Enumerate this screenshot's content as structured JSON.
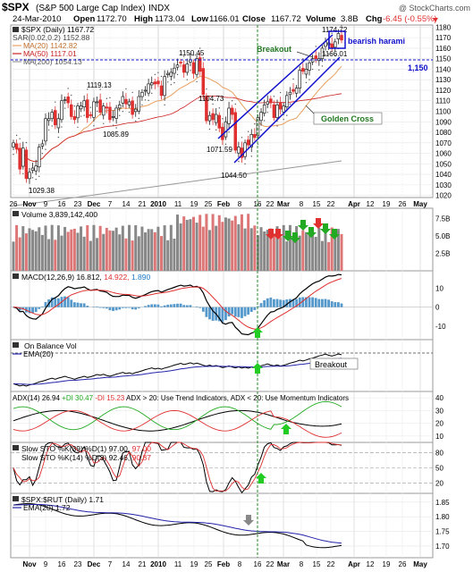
{
  "header": {
    "symbol": "$SPX",
    "name": "(S&P 500 Large Cap Index)",
    "exchange": "INDX",
    "credit": "@ StockCharts.com",
    "date": "24-Mar-2010",
    "open_label": "Open",
    "open": "1172.70",
    "high_label": "High",
    "high": "1173.04",
    "low_label": "Low",
    "low": "1166.01",
    "close_label": "Close",
    "close": "1167.72",
    "volume_label": "Volume",
    "volume": "3.8B",
    "chg_label": "Chg",
    "chg": "-6.45 (-0.55%)"
  },
  "colors": {
    "up": "#222222",
    "down": "#e03030",
    "ma20": "#e8a060",
    "ma50": "#cc2020",
    "ma200": "#999999",
    "annot": "#1010cc",
    "green": "#22aa22",
    "pane_border": "#999999"
  },
  "price_panel": {
    "legend": [
      "$SPX (Daily) 1167.72",
      "SAR(0.02,0.2) 1152.88",
      "MA(20) 1142.82",
      "MA(50) 1117.01",
      "MA(200) 1054.13"
    ],
    "y_ticks": [
      "1020",
      "1030",
      "1040",
      "1050",
      "1060",
      "1070",
      "1080",
      "1090",
      "1100",
      "1110",
      "1120",
      "1130",
      "1140",
      "1150",
      "1160",
      "1170",
      "1180"
    ],
    "ylim": [
      1018,
      1182
    ],
    "extrema_labels": [
      "1029.38",
      "1119.13",
      "1085.89",
      "1150.45",
      "1104.73",
      "1071.59",
      "1044.50",
      "1174.72",
      "1166.01"
    ],
    "annotations": {
      "breakout": "Breakout",
      "bearish": "bearish harami",
      "level": "1,150",
      "golden": "Golden Cross"
    }
  },
  "volume_panel": {
    "legend": "Volume 3,839,142,400",
    "y_ticks": [
      "2.5B",
      "5.0B",
      "7.5B"
    ]
  },
  "macd_panel": {
    "legend_name": "MACD(12,26,9)",
    "legend_macd": "16.812,",
    "legend_signal": "14.922,",
    "legend_hist": "1.890",
    "y_ticks": [
      "10",
      "0",
      "-10"
    ]
  },
  "obv_panel": {
    "legend": "On Balance Vol",
    "legend2": "EMA(20)",
    "breakout": "Breakout"
  },
  "adx_panel": {
    "legend_adx": "ADX(14) 26.94",
    "legend_pdi": "+DI 30.47",
    "legend_mdi": "-DI 15.23",
    "legend_note": "ADX > 20: Use Trend Indicators, ADX < 20: Use Momentum Indicators",
    "y_ticks": [
      "10",
      "20",
      "30",
      "40"
    ]
  },
  "sto_panel": {
    "legend1_name": "Slow STO %K(39) %D(1)",
    "legend1_k": "97.00,",
    "legend1_d": "97.00",
    "legend2_name": "Slow STO %K(14) %D(3)",
    "legend2_k": "92.46,",
    "legend2_d": "90.87",
    "y_ticks": [
      "20",
      "50",
      "80"
    ]
  },
  "ratio_panel": {
    "legend": "$SPX:$RUT (Daily) 1.71",
    "legend2": "EMA(20) 1.72",
    "y_ticks": [
      "1.70",
      "1.75",
      "1.80",
      "1.85"
    ]
  },
  "x_axis": {
    "top_labels": [
      "26",
      "Nov",
      "9",
      "16",
      "23",
      "Dec",
      "7",
      "14",
      "21",
      "2010",
      "11",
      "19",
      "25",
      "Feb",
      "8",
      "16",
      "22",
      "Mar",
      "8",
      "15",
      "22",
      "Apr",
      "12",
      "19",
      "26",
      "May"
    ],
    "bottom_labels": [
      "Nov",
      "9",
      "16",
      "23",
      "Dec",
      "7",
      "14",
      "21",
      "2010",
      "11",
      "19",
      "25",
      "Feb",
      "8",
      "16",
      "22",
      "Mar",
      "8",
      "15",
      "22",
      "Apr",
      "12",
      "19",
      "26",
      "May"
    ]
  },
  "chart_data": {
    "type": "candlestick",
    "title": "$SPX (S&P 500 Large Cap Index) INDX",
    "dates": [
      "Oct 26",
      "Oct 27",
      "Oct 28",
      "Oct 29",
      "Oct 30",
      "Nov 2",
      "Nov 3",
      "Nov 4",
      "Nov 5",
      "Nov 6",
      "Nov 9",
      "Nov 10",
      "Nov 11",
      "Nov 12",
      "Nov 13",
      "Nov 16",
      "Nov 17",
      "Nov 18",
      "Nov 19",
      "Nov 20",
      "Nov 23",
      "Nov 24",
      "Nov 25",
      "Nov 27",
      "Nov 30",
      "Dec 1",
      "Dec 2",
      "Dec 3",
      "Dec 4",
      "Dec 7",
      "Dec 8",
      "Dec 9",
      "Dec 10",
      "Dec 11",
      "Dec 14",
      "Dec 15",
      "Dec 16",
      "Dec 17",
      "Dec 18",
      "Dec 21",
      "Dec 22",
      "Dec 23",
      "Dec 24",
      "Dec 28",
      "Dec 29",
      "Dec 30",
      "Dec 31",
      "Jan 4",
      "Jan 5",
      "Jan 6",
      "Jan 7",
      "Jan 8",
      "Jan 11",
      "Jan 12",
      "Jan 13",
      "Jan 14",
      "Jan 15",
      "Jan 19",
      "Jan 20",
      "Jan 21",
      "Jan 22",
      "Jan 25",
      "Jan 26",
      "Jan 27",
      "Jan 28",
      "Jan 29",
      "Feb 1",
      "Feb 2",
      "Feb 3",
      "Feb 4",
      "Feb 5",
      "Feb 8",
      "Feb 9",
      "Feb 10",
      "Feb 11",
      "Feb 12",
      "Feb 16",
      "Feb 17",
      "Feb 18",
      "Feb 19",
      "Feb 22",
      "Feb 23",
      "Feb 24",
      "Feb 25",
      "Feb 26",
      "Mar 1",
      "Mar 2",
      "Mar 3",
      "Mar 4",
      "Mar 5",
      "Mar 8",
      "Mar 9",
      "Mar 10",
      "Mar 11",
      "Mar 12",
      "Mar 15",
      "Mar 16",
      "Mar 17",
      "Mar 18",
      "Mar 19",
      "Mar 22",
      "Mar 23",
      "Mar 24"
    ],
    "close": [
      1070,
      1064,
      1045,
      1065,
      1036,
      1042,
      1046,
      1048,
      1066,
      1069,
      1093,
      1093,
      1099,
      1087,
      1093,
      1110,
      1111,
      1108,
      1095,
      1092,
      1105,
      1105,
      1110,
      1094,
      1096,
      1109,
      1109,
      1099,
      1105,
      1103,
      1092,
      1095,
      1103,
      1106,
      1114,
      1107,
      1109,
      1097,
      1102,
      1114,
      1118,
      1120,
      1126,
      1127,
      1126,
      1126,
      1115,
      1133,
      1136,
      1137,
      1141,
      1144,
      1146,
      1137,
      1145,
      1149,
      1136,
      1150,
      1138,
      1116,
      1091,
      1096,
      1092,
      1097,
      1084,
      1073,
      1090,
      1103,
      1097,
      1063,
      1066,
      1056,
      1070,
      1068,
      1078,
      1075,
      1094,
      1099,
      1106,
      1109,
      1108,
      1094,
      1106,
      1102,
      1105,
      1115,
      1118,
      1119,
      1122,
      1139,
      1138,
      1140,
      1146,
      1150,
      1150,
      1150,
      1160,
      1166,
      1165,
      1160,
      1166,
      1174,
      1167.72
    ],
    "ylim": [
      1018,
      1182
    ],
    "volume_ylim_B": [
      0,
      9
    ],
    "macd_ylim": [
      -17,
      19
    ],
    "adx_ylim": [
      5,
      45
    ],
    "sto_ylim": [
      0,
      100
    ],
    "ratio_ylim": [
      1.66,
      1.88
    ]
  }
}
